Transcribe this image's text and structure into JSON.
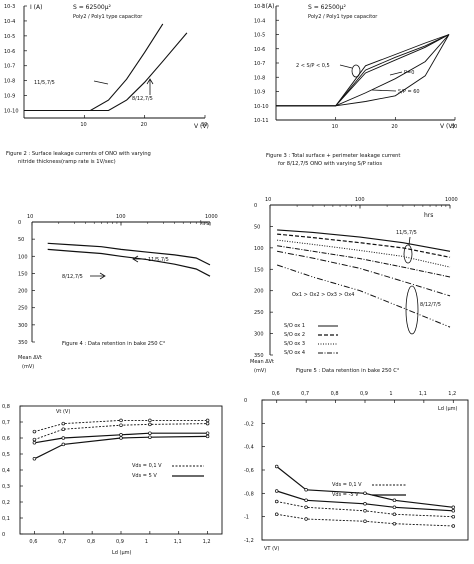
{
  "chart_data": [
    {
      "type": "line",
      "panel": "figure-2",
      "ylabel": "I (A)",
      "xlabel": "V (V)",
      "title_lines": [
        "S = 62500μ²",
        "Poly2 / Poly1 type capacitor"
      ],
      "caption_lines": [
        "Figure 2 : Surface leakage currents of ONO with varying",
        "nitride thickness(ramp rate is 1V/sec)"
      ],
      "y_scale": "log",
      "y_ticks": [
        "10-3",
        "10-4",
        "10-5",
        "10-6",
        "10-7",
        "10-8",
        "10-9",
        "10-10"
      ],
      "y_exp": [
        -3,
        -4,
        -5,
        -6,
        -7,
        -8,
        -9,
        -10
      ],
      "x_ticks": [
        "10",
        "20",
        "30"
      ],
      "x_tick_values": [
        10,
        20,
        30
      ],
      "ylim": [
        -10.5,
        -3
      ],
      "xlim": [
        0,
        30
      ],
      "annotations": [
        "11/5,7/5",
        "8/12,7/5"
      ],
      "series": [
        {
          "x": [
            0,
            11,
            14,
            17,
            20,
            23
          ],
          "log_y": [
            -10,
            -10,
            -9.3,
            -7.9,
            -6.1,
            -4.2
          ]
        },
        {
          "x": [
            0,
            14,
            17,
            20,
            23,
            27
          ],
          "log_y": [
            -10,
            -10,
            -9.3,
            -8.1,
            -6.7,
            -4.8
          ]
        }
      ]
    },
    {
      "type": "line",
      "panel": "figure-3",
      "ylabel": "I (A)",
      "xlabel": "V (V)",
      "title_lines": [
        "S = 62500μ²",
        "Poly2 / Poly1 type capacitor"
      ],
      "caption_lines": [
        "Figure 3 : Total surface + perimeter leakage current",
        "for 8/12,7/5 ONO with varying S/P ratios"
      ],
      "y_scale": "log",
      "y_ticks": [
        "10-3",
        "10-4",
        "10-5",
        "10-6",
        "10-7",
        "10-8",
        "10-9",
        "10-10",
        "10-11"
      ],
      "y_exp": [
        -3,
        -4,
        -5,
        -6,
        -7,
        -8,
        -9,
        -10,
        -11
      ],
      "x_ticks": [
        "10",
        "20",
        "30"
      ],
      "x_tick_values": [
        10,
        20,
        30
      ],
      "ylim": [
        -11,
        -3
      ],
      "xlim": [
        0,
        30
      ],
      "annotations": [
        "2 < S/P < 0,5",
        "P=0",
        "S/P = 60"
      ],
      "series": [
        {
          "x": [
            0,
            10,
            15,
            20,
            25,
            29
          ],
          "log_y": [
            -10,
            -10,
            -7.7,
            -6.8,
            -5.9,
            -5.0
          ]
        },
        {
          "x": [
            0,
            10,
            15,
            20,
            25,
            29
          ],
          "log_y": [
            -10,
            -10,
            -7.5,
            -6.6,
            -5.8,
            -5.0
          ]
        },
        {
          "x": [
            0,
            10,
            15,
            20,
            25,
            29
          ],
          "log_y": [
            -10,
            -10,
            -7.2,
            -6.4,
            -5.6,
            -5.0
          ]
        },
        {
          "x": [
            0,
            10,
            15,
            20,
            25,
            29
          ],
          "log_y": [
            -10,
            -10,
            -9.1,
            -8.1,
            -6.9,
            -5.0
          ]
        },
        {
          "x": [
            0,
            10,
            15,
            20,
            25,
            29
          ],
          "log_y": [
            -10,
            -10,
            -9.7,
            -9.3,
            -7.9,
            -5.0
          ]
        }
      ]
    },
    {
      "type": "line",
      "panel": "figure-4",
      "xlabel": "hrs",
      "ylabel_lines": [
        "Mean ΔVt",
        "(mV)"
      ],
      "caption": "Figure 4 : Data retention in bake 250 C°",
      "x_scale": "log",
      "x_ticks": [
        "10",
        "100",
        "1000"
      ],
      "x_tick_values": [
        10,
        100,
        1000
      ],
      "xlim": [
        10,
        1000
      ],
      "y_ticks": [
        "0",
        "50",
        "100",
        "150",
        "200",
        "250",
        "300",
        "350"
      ],
      "y_tick_values": [
        0,
        50,
        100,
        150,
        200,
        250,
        300,
        350
      ],
      "ylim": [
        0,
        350
      ],
      "y_inverted": true,
      "series": [
        {
          "name": "11/5,7/5",
          "x": [
            15,
            30,
            60,
            100,
            200,
            400,
            700,
            1000
          ],
          "y": [
            62,
            67,
            72,
            80,
            88,
            96,
            105,
            125
          ]
        },
        {
          "name": "8/12,7/5",
          "x": [
            15,
            30,
            60,
            100,
            200,
            400,
            700,
            1000
          ],
          "y": [
            80,
            86,
            92,
            100,
            110,
            123,
            137,
            158
          ]
        }
      ]
    },
    {
      "type": "line",
      "panel": "figure-5",
      "xlabel": "hrs",
      "ylabel_lines": [
        "Mean ΔVt",
        "(mV)"
      ],
      "caption": "Figure 5 : Data retention in bake 250 C°",
      "x_scale": "log",
      "x_ticks": [
        "10",
        "100",
        "1000"
      ],
      "x_tick_values": [
        10,
        100,
        1000
      ],
      "xlim": [
        10,
        1000
      ],
      "y_ticks": [
        "0",
        "50",
        "100",
        "150",
        "200",
        "250",
        "300",
        "350"
      ],
      "y_tick_values": [
        0,
        50,
        100,
        150,
        200,
        250,
        300,
        350
      ],
      "ylim": [
        0,
        350
      ],
      "y_inverted": true,
      "annotations": [
        "11/5,7/5",
        "8/12/7/5",
        "Ox1 > Ox2 > Ox3 > Ox4"
      ],
      "series": [
        {
          "name": "S/O ox 1",
          "x": [
            12,
            30,
            100,
            300,
            1000
          ],
          "y": [
            58,
            64,
            75,
            88,
            108
          ]
        },
        {
          "name": "S/O ox 2",
          "x": [
            12,
            30,
            100,
            300,
            1000
          ],
          "y": [
            68,
            76,
            88,
            100,
            122
          ]
        },
        {
          "name": "S/O ox 3",
          "x": [
            12,
            30,
            100,
            300,
            1000
          ],
          "y": [
            82,
            92,
            106,
            120,
            145
          ]
        },
        {
          "name": "S/O ox 4",
          "x": [
            12,
            30,
            100,
            300,
            1000
          ],
          "y": [
            95,
            108,
            125,
            145,
            168
          ]
        },
        {
          "x": [
            12,
            30,
            100,
            300,
            1000
          ],
          "y": [
            108,
            124,
            148,
            178,
            212
          ]
        },
        {
          "x": [
            12,
            30,
            100,
            300,
            1000
          ],
          "y": [
            140,
            168,
            200,
            240,
            285
          ]
        }
      ]
    },
    {
      "type": "line",
      "panel": "figure-6",
      "ylabel": "Vt (V)",
      "xlabel": "Ld (μm)",
      "x_ticks": [
        "0,6",
        "0,7",
        "0,8",
        "0,9",
        "1",
        "1,1",
        "1,2"
      ],
      "x_tick_values": [
        0.6,
        0.7,
        0.8,
        0.9,
        1.0,
        1.1,
        1.2
      ],
      "xlim": [
        0.55,
        1.25
      ],
      "y_ticks": [
        "0,8",
        "0,7",
        "0,6",
        "0,5",
        "0,4",
        "0,3",
        "0,2",
        "0,1",
        "0"
      ],
      "y_tick_values": [
        0.8,
        0.7,
        0.6,
        0.5,
        0.4,
        0.3,
        0.2,
        0.1,
        0
      ],
      "ylim": [
        0,
        0.8
      ],
      "legend": [
        "Vds = 0,1 V",
        "Vds = 5 V"
      ],
      "series": [
        {
          "name": "Vds = 0,1 V",
          "x": [
            0.6,
            0.7,
            0.9,
            1.0,
            1.2
          ],
          "y": [
            0.64,
            0.69,
            0.71,
            0.71,
            0.71
          ]
        },
        {
          "name": "Vds = 0,1 V",
          "x": [
            0.6,
            0.7,
            0.9,
            1.0,
            1.2
          ],
          "y": [
            0.59,
            0.655,
            0.68,
            0.685,
            0.69
          ]
        },
        {
          "name": "Vds = 5 V",
          "x": [
            0.6,
            0.7,
            0.9,
            1.0,
            1.2
          ],
          "y": [
            0.57,
            0.6,
            0.62,
            0.63,
            0.63
          ]
        },
        {
          "name": "Vds = 5 V",
          "x": [
            0.6,
            0.7,
            0.9,
            1.0,
            1.2
          ],
          "y": [
            0.47,
            0.56,
            0.6,
            0.605,
            0.61
          ]
        }
      ]
    },
    {
      "type": "line",
      "panel": "figure-7",
      "ylabel": "VT (V)",
      "xlabel": "Ld (μm)",
      "x_ticks": [
        "0,6",
        "0,7",
        "0,8",
        "0,9",
        "1",
        "1,1",
        "1,2"
      ],
      "x_tick_values": [
        0.6,
        0.7,
        0.8,
        0.9,
        1.0,
        1.1,
        1.2
      ],
      "xlim": [
        0.55,
        1.25
      ],
      "y_ticks": [
        "0",
        "-0,2",
        "-0,4",
        "-0,6",
        "-0,8",
        "-1",
        "-1,2"
      ],
      "y_tick_values": [
        0,
        -0.2,
        -0.4,
        -0.6,
        -0.8,
        -1.0,
        -1.2
      ],
      "ylim": [
        -1.2,
        0
      ],
      "legend": [
        "Vds = 0,1 V",
        "Vds = -5 V"
      ],
      "series": [
        {
          "name": "Vds = -5 V",
          "x": [
            0.6,
            0.7,
            0.9,
            1.0,
            1.2
          ],
          "y": [
            -0.57,
            -0.77,
            -0.8,
            -0.86,
            -0.92
          ]
        },
        {
          "name": "Vds = -5 V",
          "x": [
            0.6,
            0.7,
            0.9,
            1.0,
            1.2
          ],
          "y": [
            -0.78,
            -0.86,
            -0.89,
            -0.92,
            -0.95
          ]
        },
        {
          "name": "Vds = 0,1 V",
          "x": [
            0.6,
            0.7,
            0.9,
            1.0,
            1.2
          ],
          "y": [
            -0.87,
            -0.92,
            -0.95,
            -0.98,
            -1.0
          ]
        },
        {
          "name": "Vds = 0,1 V",
          "x": [
            0.6,
            0.7,
            0.9,
            1.0,
            1.2
          ],
          "y": [
            -0.98,
            -1.02,
            -1.04,
            -1.06,
            -1.08
          ]
        }
      ]
    }
  ]
}
